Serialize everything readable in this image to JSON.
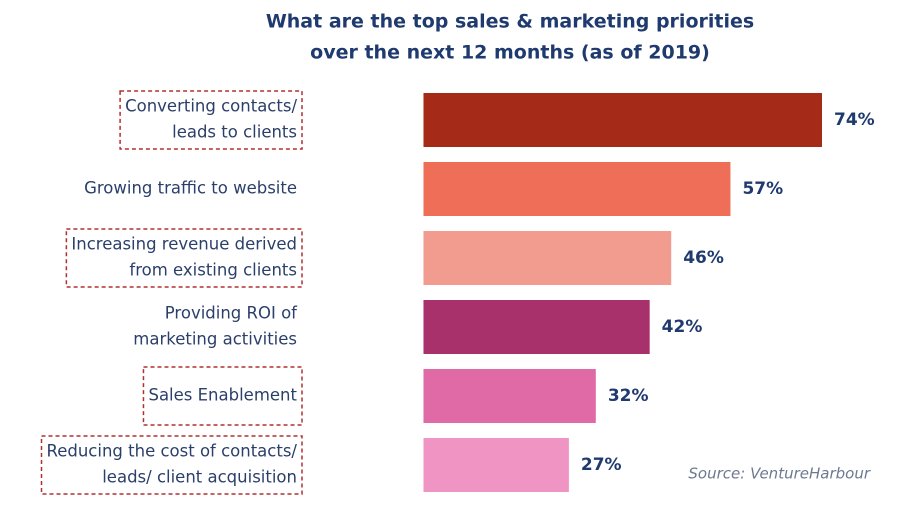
{
  "chart_data": {
    "type": "hbar",
    "title": [
      "What are the top sales & marketing priorities",
      "over the next 12 months (as of 2019)"
    ],
    "categories": [
      [
        "Converting contacts/",
        "leads to clients"
      ],
      [
        "Growing traffic to website"
      ],
      [
        "Increasing revenue derived",
        "from existing clients"
      ],
      [
        "Providing ROI of",
        "marketing activities"
      ],
      [
        "Sales Enablement"
      ],
      [
        "Reducing the cost of contacts/",
        "leads/ client acquisition"
      ]
    ],
    "values": [
      74,
      57,
      46,
      42,
      32,
      27
    ],
    "value_labels": [
      "74%",
      "57%",
      "46%",
      "42%",
      "32%",
      "27%"
    ],
    "colors": [
      "#a52a18",
      "#ef6e58",
      "#f29c90",
      "#a8306b",
      "#e06aa6",
      "#f094c3"
    ],
    "highlight_boxes": [
      true,
      false,
      true,
      false,
      true,
      true
    ],
    "xlim": [
      -22,
      74
    ],
    "source": "Source: VentureHarbour"
  }
}
